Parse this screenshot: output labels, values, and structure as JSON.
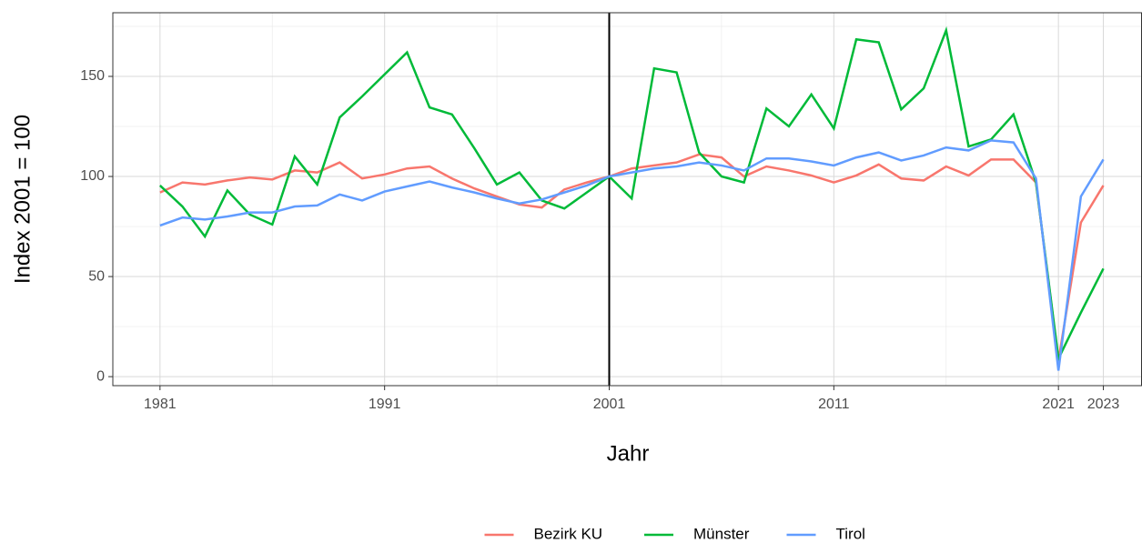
{
  "chart_data": {
    "type": "line",
    "x_label": "Jahr",
    "y_label": "Index 2001 = 100",
    "x": [
      1981,
      1982,
      1983,
      1984,
      1985,
      1986,
      1987,
      1988,
      1989,
      1990,
      1991,
      1992,
      1993,
      1994,
      1995,
      1996,
      1997,
      1998,
      1999,
      2000,
      2001,
      2002,
      2003,
      2004,
      2005,
      2006,
      2007,
      2008,
      2009,
      2010,
      2011,
      2012,
      2013,
      2014,
      2015,
      2016,
      2017,
      2018,
      2019,
      2020,
      2021,
      2022,
      2023
    ],
    "series": [
      {
        "name": "Bezirk KU",
        "color": "#F8766D",
        "values": [
          92,
          97,
          96,
          98,
          99.5,
          98.5,
          103,
          102,
          107,
          99,
          101,
          104,
          105,
          99,
          94,
          90,
          86,
          84.5,
          93.5,
          97,
          100,
          104,
          105.5,
          107,
          111,
          109.5,
          100,
          105,
          103,
          100.5,
          97,
          100.5,
          106,
          99,
          98,
          105,
          100.5,
          108.5,
          108.5,
          97,
          8,
          77,
          95.5
        ]
      },
      {
        "name": "Münster",
        "color": "#00BA38",
        "values": [
          95.5,
          85,
          70,
          93,
          81,
          76,
          110,
          96,
          129.5,
          140,
          151,
          162,
          134.5,
          131,
          114,
          96,
          102,
          88,
          84,
          92,
          100,
          89,
          154,
          152,
          112,
          100,
          97,
          134,
          125,
          141,
          124,
          168.5,
          167,
          133.5,
          144,
          173,
          115,
          118.5,
          131,
          97,
          9,
          32,
          54
        ]
      },
      {
        "name": "Tirol",
        "color": "#619CFF",
        "values": [
          75.5,
          79.5,
          78.5,
          80,
          82,
          82,
          85,
          85.5,
          91,
          88,
          92.5,
          95,
          97.5,
          94.5,
          92,
          89,
          86.5,
          88.5,
          92,
          95.5,
          100,
          102,
          104,
          105,
          107,
          105.5,
          103,
          109,
          109,
          107.5,
          105.5,
          109.5,
          112,
          108,
          110.5,
          114.5,
          113,
          118,
          117,
          99,
          3,
          90,
          108.5
        ]
      }
    ],
    "xlim": [
      1978.9,
      2024.7
    ],
    "ylim": [
      -4.5,
      181.8
    ],
    "xticks": [
      1981,
      1991,
      2001,
      2011,
      2021,
      2023
    ],
    "yticks": [
      0,
      50,
      100,
      150
    ],
    "x_minor_grid": [
      1986,
      1996,
      2006,
      2016
    ],
    "y_minor_grid": [
      25,
      75,
      125,
      175
    ],
    "vline": 2001,
    "grid": true,
    "legend": "bottom"
  }
}
